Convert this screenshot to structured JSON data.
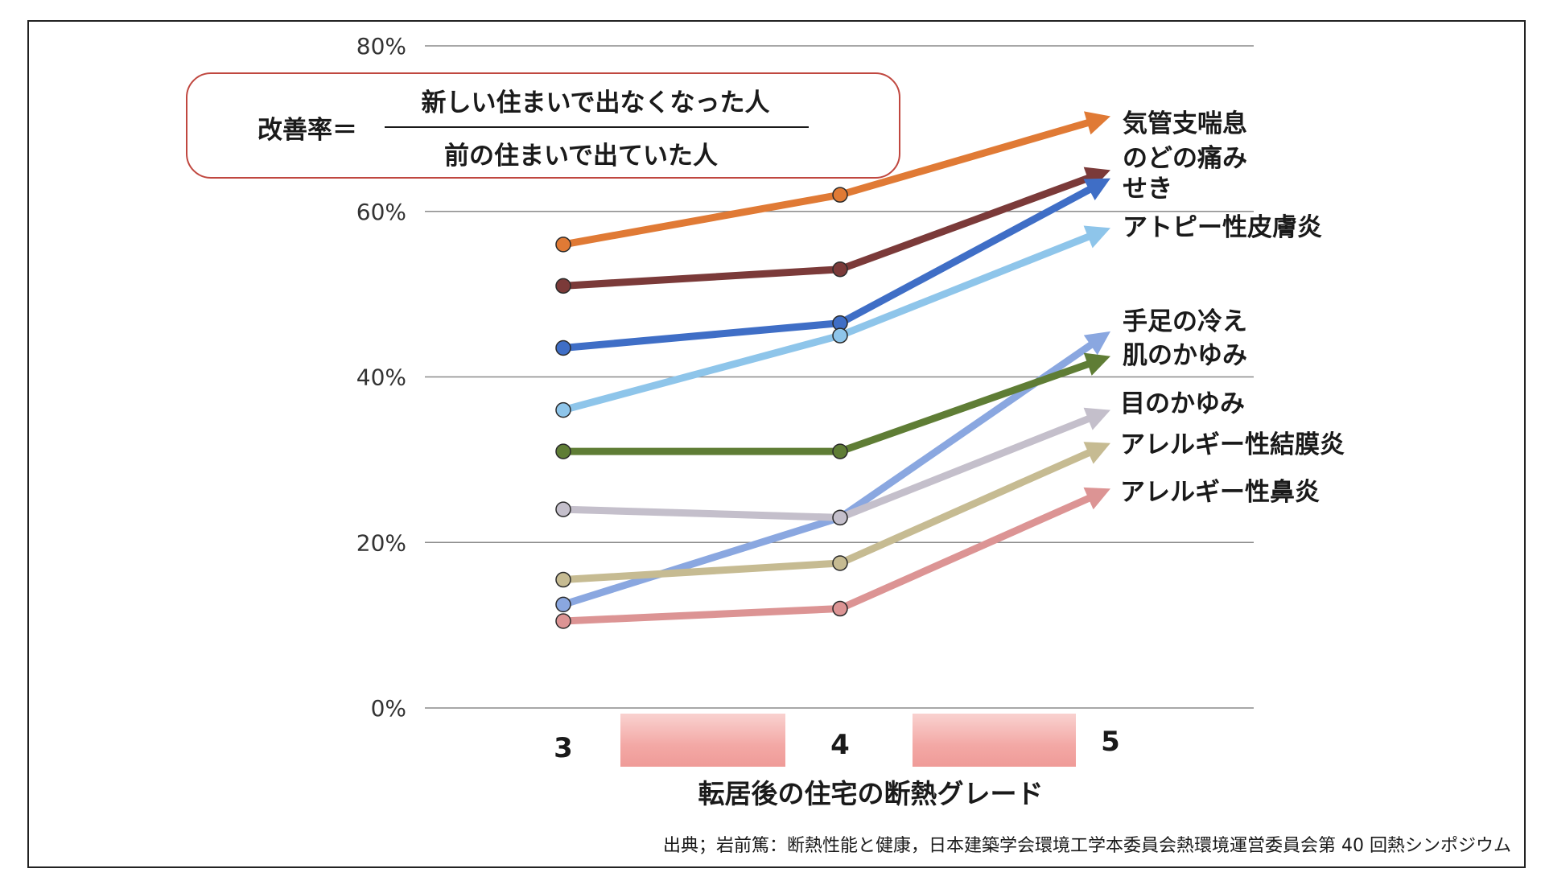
{
  "formula": {
    "label": "改善率＝",
    "numerator": "新しい住まいで出なくなった人",
    "denominator": "前の住まいで出ていた人"
  },
  "source": "出典；岩前篤：断熱性能と健康，日本建築学会環境工学本委員会熱環境運営委員会第 40 回熱シンポジウム",
  "chart_data": {
    "type": "line",
    "title": "",
    "xlabel": "転居後の住宅の断熱グレード",
    "ylabel": "",
    "categories": [
      "3",
      "4",
      "5"
    ],
    "ylim": [
      0,
      80
    ],
    "yticks": [
      0,
      20,
      40,
      60,
      80
    ],
    "ytick_labels": [
      "0%",
      "20%",
      "40%",
      "60%",
      "80%"
    ],
    "grid": true,
    "legend": "labels at line ends (right)",
    "series": [
      {
        "name": "気管支喘息",
        "color": "#e07a35",
        "values": [
          56,
          62,
          71.5
        ]
      },
      {
        "name": "のどの痛み",
        "color": "#7b3a39",
        "values": [
          51,
          53,
          65
        ]
      },
      {
        "name": "せき",
        "color": "#3f6ec6",
        "values": [
          43.5,
          46.5,
          64
        ]
      },
      {
        "name": "アトピー性皮膚炎",
        "color": "#8ec5ea",
        "values": [
          36,
          45,
          58
        ]
      },
      {
        "name": "手足の冷え",
        "color": "#8aa7e0",
        "values": [
          12.5,
          23,
          45.5
        ]
      },
      {
        "name": "肌のかゆみ",
        "color": "#5f7d35",
        "values": [
          31,
          31,
          42.5
        ]
      },
      {
        "name": "目のかゆみ",
        "color": "#c4bfcb",
        "values": [
          24,
          23,
          36
        ]
      },
      {
        "name": "アレルギー性結膜炎",
        "color": "#c6bb92",
        "values": [
          15.5,
          17.5,
          32
        ]
      },
      {
        "name": "アレルギー性鼻炎",
        "color": "#dc9494",
        "values": [
          10.5,
          12,
          26.5
        ]
      }
    ]
  }
}
